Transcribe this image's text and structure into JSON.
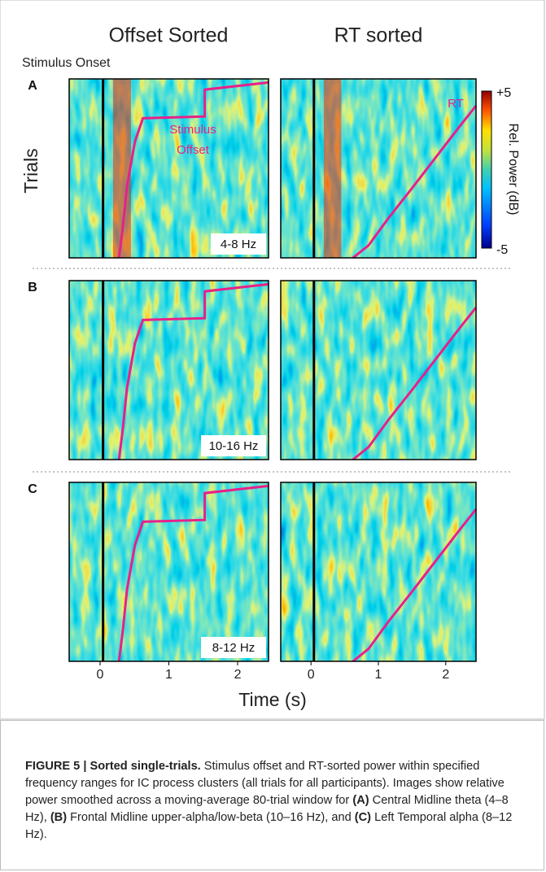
{
  "columns": [
    "Offset Sorted",
    "RT sorted"
  ],
  "annotations": {
    "onset": "Stimulus Onset",
    "offset_1": "Stimulus",
    "offset_2": "Offset",
    "rt": "RT"
  },
  "y_label": "Trials",
  "x_label": "Time (s)",
  "x_ticks": [
    "0",
    "1",
    "2"
  ],
  "colorbar": {
    "max": "+5",
    "min": "-5",
    "label": "Rel. Power (dB)"
  },
  "rows": [
    {
      "letter": "A",
      "band": "4-8 Hz"
    },
    {
      "letter": "B",
      "band": "10-16 Hz"
    },
    {
      "letter": "C",
      "band": "8-12 Hz"
    }
  ],
  "caption": {
    "label": "FIGURE 5 | Sorted single-trials.",
    "segments": [
      " Stimulus offset and RT-sorted power within specified frequency ranges for IC process clusters (all trials for all participants). Images show relative power smoothed across a moving-average 80-trial window for ",
      "(A)",
      " Central Midline theta (4–8 Hz), ",
      "(B)",
      " Frontal Midline upper-alpha/low-beta (10–16 Hz), and ",
      "(C)",
      " Left Temporal alpha (8–12 Hz)."
    ]
  }
}
